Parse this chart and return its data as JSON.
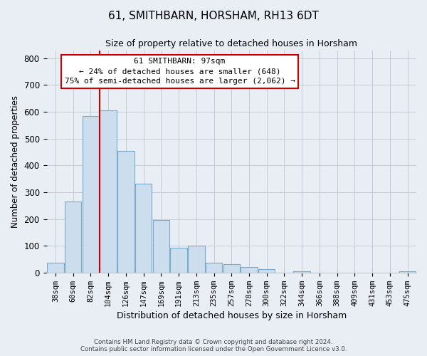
{
  "title": "61, SMITHBARN, HORSHAM, RH13 6DT",
  "subtitle": "Size of property relative to detached houses in Horsham",
  "xlabel": "Distribution of detached houses by size in Horsham",
  "ylabel": "Number of detached properties",
  "bar_labels": [
    "38sqm",
    "60sqm",
    "82sqm",
    "104sqm",
    "126sqm",
    "147sqm",
    "169sqm",
    "191sqm",
    "213sqm",
    "235sqm",
    "257sqm",
    "278sqm",
    "300sqm",
    "322sqm",
    "344sqm",
    "366sqm",
    "388sqm",
    "409sqm",
    "431sqm",
    "453sqm",
    "475sqm"
  ],
  "bar_values": [
    38,
    265,
    585,
    605,
    455,
    332,
    197,
    92,
    100,
    38,
    32,
    22,
    13,
    0,
    5,
    0,
    0,
    0,
    0,
    0,
    5
  ],
  "bar_color": "#ccdded",
  "bar_edge_color": "#7aaacc",
  "vline_color": "#cc0000",
  "vline_bar_index": 3,
  "ylim": [
    0,
    830
  ],
  "yticks": [
    0,
    100,
    200,
    300,
    400,
    500,
    600,
    700,
    800
  ],
  "ann_line1": "61 SMITHBARN: 97sqm",
  "ann_line2": "← 24% of detached houses are smaller (648)",
  "ann_line3": "75% of semi-detached houses are larger (2,062) →",
  "footer_line1": "Contains HM Land Registry data © Crown copyright and database right 2024.",
  "footer_line2": "Contains public sector information licensed under the Open Government Licence v3.0.",
  "bg_color": "#e8eef4",
  "plot_bg_color": "#e8eef4",
  "grid_color": "#c0ccd8"
}
